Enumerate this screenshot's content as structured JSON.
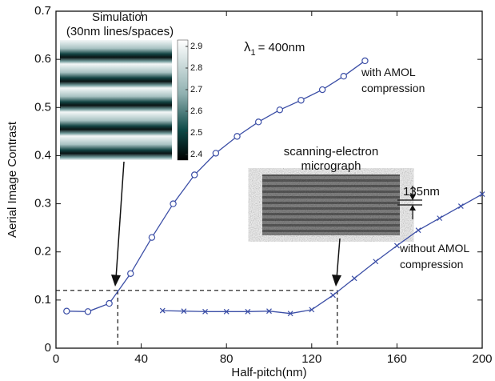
{
  "chart_data": {
    "type": "line",
    "x_label": "Half-pitch(nm)",
    "y_label": "Aerial Image Contrast",
    "xlim": [
      0,
      200
    ],
    "xticks": [
      0,
      40,
      80,
      120,
      160,
      200
    ],
    "ylim": [
      0,
      0.7
    ],
    "yticks": [
      0,
      0.1,
      0.2,
      0.3,
      0.4,
      0.5,
      0.6,
      0.7
    ],
    "series": [
      {
        "name": "with AMOL compression",
        "color": "#3b4ea6",
        "marker": "o",
        "x": [
          5,
          15,
          25,
          35,
          45,
          55,
          65,
          75,
          85,
          95,
          105,
          115,
          125,
          135,
          145
        ],
        "values": [
          0.077,
          0.076,
          0.093,
          0.155,
          0.23,
          0.3,
          0.36,
          0.405,
          0.44,
          0.47,
          0.495,
          0.515,
          0.537,
          0.565,
          0.597
        ]
      },
      {
        "name": "without AMOL compression",
        "color": "#3b4ea6",
        "marker": "x",
        "x": [
          50,
          60,
          70,
          80,
          90,
          100,
          110,
          120,
          130,
          140,
          150,
          160,
          170,
          180,
          190,
          200
        ],
        "values": [
          0.078,
          0.077,
          0.076,
          0.076,
          0.076,
          0.077,
          0.072,
          0.08,
          0.11,
          0.145,
          0.18,
          0.213,
          0.245,
          0.27,
          0.295,
          0.32
        ]
      }
    ],
    "guides": {
      "y": 0.12,
      "x": [
        29,
        132
      ]
    },
    "annotation": {
      "symbol": "λ",
      "subscript": "1",
      "text": "= 400nm"
    },
    "simulation_inset": {
      "title": "Simulation",
      "subtitle": "(30nm lines/spaces)",
      "colorbar_lim": [
        2.4,
        2.9
      ],
      "colorbar_ticks": [
        2.9,
        2.8,
        2.7,
        2.6,
        2.5,
        2.4
      ]
    },
    "sem_inset": {
      "title": "scanning-electron",
      "subtitle": "micrograph",
      "scale_label": "135nm"
    }
  }
}
